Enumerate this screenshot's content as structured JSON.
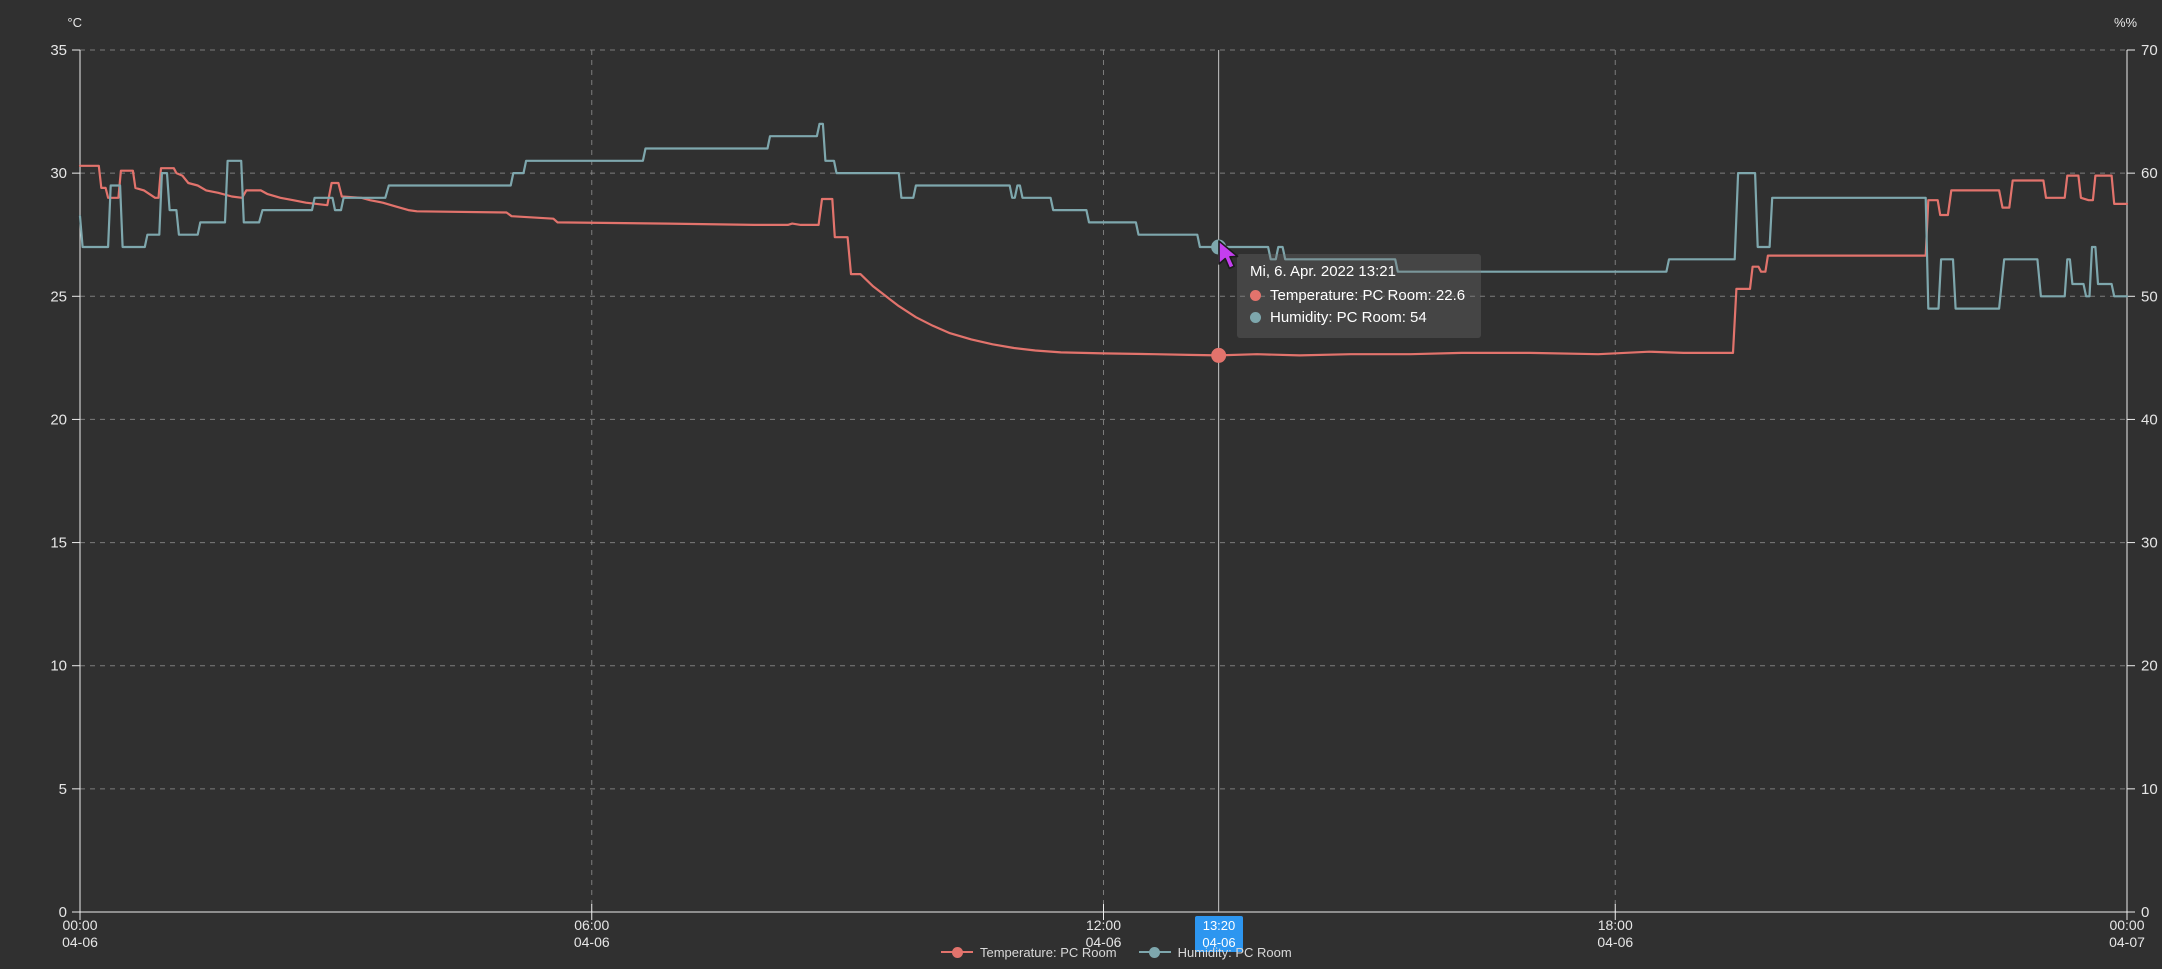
{
  "window": {
    "background": "#303030"
  },
  "axes": {
    "unit_left": "°C",
    "unit_right": "%%",
    "left_ticks": [
      35,
      30,
      25,
      20,
      15,
      10,
      5,
      0
    ],
    "right_ticks": [
      70,
      60,
      50,
      40,
      30,
      20,
      10,
      0
    ],
    "x_ticks": [
      {
        "hour": 0,
        "time": "00:00",
        "date": "04-06"
      },
      {
        "hour": 6,
        "time": "06:00",
        "date": "04-06"
      },
      {
        "hour": 12,
        "time": "12:00",
        "date": "04-06"
      },
      {
        "hour": 18,
        "time": "18:00",
        "date": "04-06"
      },
      {
        "hour": 24,
        "time": "00:00",
        "date": "04-07"
      }
    ]
  },
  "chart_data": {
    "type": "line",
    "title": "",
    "x_range_hours": [
      0,
      24
    ],
    "left_axis": {
      "unit": "°C",
      "range": [
        0,
        35
      ]
    },
    "right_axis": {
      "unit": "%%",
      "range": [
        0,
        70
      ]
    },
    "grid": true,
    "legend_position": "bottom",
    "series": [
      {
        "name": "Temperature: PC Room",
        "axis": "left",
        "unit": "°C",
        "color": "#e2736c",
        "points": [
          [
            0,
            30.3
          ],
          [
            0.22,
            30.3
          ],
          [
            0.25,
            29.4
          ],
          [
            0.3,
            29.4
          ],
          [
            0.33,
            29.0
          ],
          [
            0.45,
            29.0
          ],
          [
            0.48,
            30.1
          ],
          [
            0.62,
            30.1
          ],
          [
            0.65,
            29.4
          ],
          [
            0.75,
            29.3
          ],
          [
            0.88,
            29.0
          ],
          [
            0.92,
            29.0
          ],
          [
            0.95,
            30.2
          ],
          [
            1.1,
            30.2
          ],
          [
            1.13,
            30.0
          ],
          [
            1.2,
            29.9
          ],
          [
            1.27,
            29.6
          ],
          [
            1.38,
            29.5
          ],
          [
            1.48,
            29.3
          ],
          [
            1.62,
            29.2
          ],
          [
            1.78,
            29.05
          ],
          [
            1.9,
            29.0
          ],
          [
            1.95,
            29.3
          ],
          [
            2.12,
            29.3
          ],
          [
            2.2,
            29.15
          ],
          [
            2.35,
            29.0
          ],
          [
            2.5,
            28.9
          ],
          [
            2.65,
            28.8
          ],
          [
            2.9,
            28.7
          ],
          [
            2.95,
            29.6
          ],
          [
            3.03,
            29.6
          ],
          [
            3.07,
            29.05
          ],
          [
            3.3,
            29.0
          ],
          [
            3.4,
            28.9
          ],
          [
            3.55,
            28.8
          ],
          [
            3.7,
            28.65
          ],
          [
            3.85,
            28.5
          ],
          [
            3.95,
            28.45
          ],
          [
            5.0,
            28.4
          ],
          [
            5.06,
            28.25
          ],
          [
            5.55,
            28.15
          ],
          [
            5.6,
            28.0
          ],
          [
            6.9,
            27.95
          ],
          [
            7.9,
            27.9
          ],
          [
            8.3,
            27.9
          ],
          [
            8.35,
            27.95
          ],
          [
            8.45,
            27.9
          ],
          [
            8.66,
            27.9
          ],
          [
            8.7,
            28.95
          ],
          [
            8.82,
            28.95
          ],
          [
            8.85,
            27.4
          ],
          [
            9.0,
            27.4
          ],
          [
            9.04,
            25.9
          ],
          [
            9.15,
            25.9
          ],
          [
            9.3,
            25.4
          ],
          [
            9.45,
            25.0
          ],
          [
            9.6,
            24.6
          ],
          [
            9.8,
            24.15
          ],
          [
            10.0,
            23.8
          ],
          [
            10.2,
            23.5
          ],
          [
            10.45,
            23.25
          ],
          [
            10.7,
            23.05
          ],
          [
            10.95,
            22.9
          ],
          [
            11.2,
            22.8
          ],
          [
            11.5,
            22.72
          ],
          [
            12.0,
            22.68
          ],
          [
            12.6,
            22.65
          ],
          [
            13.0,
            22.62
          ],
          [
            13.35,
            22.6
          ],
          [
            13.8,
            22.65
          ],
          [
            14.3,
            22.6
          ],
          [
            14.9,
            22.65
          ],
          [
            15.6,
            22.65
          ],
          [
            16.2,
            22.7
          ],
          [
            17.0,
            22.7
          ],
          [
            17.8,
            22.65
          ],
          [
            18.4,
            22.75
          ],
          [
            18.8,
            22.7
          ],
          [
            19.38,
            22.7
          ],
          [
            19.42,
            25.3
          ],
          [
            19.58,
            25.3
          ],
          [
            19.61,
            26.2
          ],
          [
            19.68,
            26.2
          ],
          [
            19.71,
            26.0
          ],
          [
            19.76,
            26.0
          ],
          [
            19.79,
            26.65
          ],
          [
            21.64,
            26.65
          ],
          [
            21.67,
            28.9
          ],
          [
            21.78,
            28.9
          ],
          [
            21.81,
            28.3
          ],
          [
            21.9,
            28.3
          ],
          [
            21.94,
            29.3
          ],
          [
            22.5,
            29.3
          ],
          [
            22.54,
            28.6
          ],
          [
            22.62,
            28.6
          ],
          [
            22.66,
            29.7
          ],
          [
            23.02,
            29.7
          ],
          [
            23.05,
            29.0
          ],
          [
            23.27,
            29.0
          ],
          [
            23.3,
            29.9
          ],
          [
            23.43,
            29.9
          ],
          [
            23.46,
            29.0
          ],
          [
            23.55,
            28.9
          ],
          [
            23.6,
            28.9
          ],
          [
            23.63,
            29.9
          ],
          [
            23.82,
            29.9
          ],
          [
            23.85,
            28.75
          ],
          [
            24,
            28.75
          ]
        ]
      },
      {
        "name": "Humidity: PC Room",
        "axis": "right",
        "unit": "%%",
        "color": "#7ea7ad",
        "points": [
          [
            0,
            56.5
          ],
          [
            0.03,
            54
          ],
          [
            0.33,
            54
          ],
          [
            0.36,
            59
          ],
          [
            0.47,
            59
          ],
          [
            0.5,
            54
          ],
          [
            0.76,
            54
          ],
          [
            0.79,
            55
          ],
          [
            0.93,
            55
          ],
          [
            0.96,
            60
          ],
          [
            1.02,
            60
          ],
          [
            1.05,
            57
          ],
          [
            1.13,
            57
          ],
          [
            1.16,
            55
          ],
          [
            1.38,
            55
          ],
          [
            1.41,
            56
          ],
          [
            1.7,
            56
          ],
          [
            1.73,
            61
          ],
          [
            1.89,
            61
          ],
          [
            1.92,
            56
          ],
          [
            2.1,
            56
          ],
          [
            2.14,
            57
          ],
          [
            2.72,
            57
          ],
          [
            2.75,
            58
          ],
          [
            2.96,
            58
          ],
          [
            2.99,
            57
          ],
          [
            3.06,
            57
          ],
          [
            3.09,
            58
          ],
          [
            3.58,
            58
          ],
          [
            3.62,
            59
          ],
          [
            5.05,
            59
          ],
          [
            5.08,
            60
          ],
          [
            5.2,
            60
          ],
          [
            5.23,
            61
          ],
          [
            6.6,
            61
          ],
          [
            6.63,
            62
          ],
          [
            8.06,
            62
          ],
          [
            8.09,
            63
          ],
          [
            8.64,
            63
          ],
          [
            8.67,
            64
          ],
          [
            8.71,
            64
          ],
          [
            8.74,
            61
          ],
          [
            8.84,
            61
          ],
          [
            8.87,
            60
          ],
          [
            9.6,
            60
          ],
          [
            9.63,
            58
          ],
          [
            9.77,
            58
          ],
          [
            9.8,
            59
          ],
          [
            10.9,
            59
          ],
          [
            10.93,
            58
          ],
          [
            10.96,
            58
          ],
          [
            10.99,
            59
          ],
          [
            11.02,
            59
          ],
          [
            11.05,
            58
          ],
          [
            11.38,
            58
          ],
          [
            11.41,
            57
          ],
          [
            11.8,
            57
          ],
          [
            11.83,
            56
          ],
          [
            12.38,
            56
          ],
          [
            12.41,
            55
          ],
          [
            13.1,
            55
          ],
          [
            13.13,
            54
          ],
          [
            13.93,
            54
          ],
          [
            13.96,
            53
          ],
          [
            14.02,
            53
          ],
          [
            14.05,
            54
          ],
          [
            14.1,
            54
          ],
          [
            14.13,
            53
          ],
          [
            15.42,
            53
          ],
          [
            15.45,
            52
          ],
          [
            18.6,
            52
          ],
          [
            18.63,
            53
          ],
          [
            19.4,
            53
          ],
          [
            19.44,
            60
          ],
          [
            19.64,
            60
          ],
          [
            19.67,
            54
          ],
          [
            19.81,
            54
          ],
          [
            19.84,
            58
          ],
          [
            21.64,
            58
          ],
          [
            21.67,
            49
          ],
          [
            21.79,
            49
          ],
          [
            21.82,
            53
          ],
          [
            21.96,
            53
          ],
          [
            21.99,
            49
          ],
          [
            22.5,
            49
          ],
          [
            22.56,
            53
          ],
          [
            22.95,
            53
          ],
          [
            22.99,
            50
          ],
          [
            23.27,
            50
          ],
          [
            23.3,
            53
          ],
          [
            23.33,
            53
          ],
          [
            23.36,
            51
          ],
          [
            23.49,
            51
          ],
          [
            23.52,
            50
          ],
          [
            23.56,
            50
          ],
          [
            23.59,
            54
          ],
          [
            23.63,
            54
          ],
          [
            23.66,
            51
          ],
          [
            23.82,
            51
          ],
          [
            23.85,
            50
          ],
          [
            24,
            50
          ]
        ]
      }
    ]
  },
  "crosshair": {
    "hour": 13.35,
    "line_color": "#c6c6c6",
    "marked_values": {
      "temperature": 22.6,
      "humidity": 54
    }
  },
  "time_badge": {
    "time": "13:20",
    "date": "04-06",
    "background": "#2d96f0"
  },
  "tooltip": {
    "title": "Mi, 6. Apr. 2022 13:21",
    "rows": [
      {
        "text": "Temperature: PC Room: 22.6",
        "color": "#e2736c"
      },
      {
        "text": "Humidity: PC Room: 54",
        "color": "#7ea7ad"
      }
    ]
  },
  "legend": {
    "items": [
      {
        "label": "Temperature: PC Room",
        "color": "#e2736c"
      },
      {
        "label": "Humidity: PC Room",
        "color": "#7ea7ad"
      }
    ]
  },
  "cursor": {
    "color": "#c43eef"
  }
}
